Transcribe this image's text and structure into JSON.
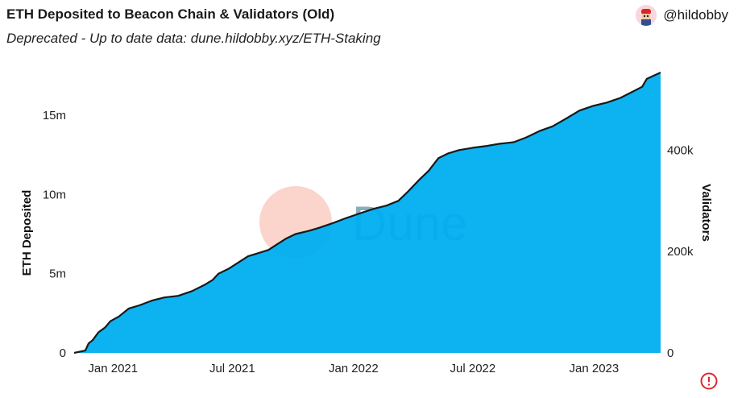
{
  "header": {
    "title": "ETH Deposited to Beacon Chain & Validators (Old)",
    "subtitle": "Deprecated - Up to date data: dune.hildobby.xyz/ETH-Staking",
    "author": "@hildobby"
  },
  "watermark": {
    "text": "Dune"
  },
  "colors": {
    "area": "#00aeef",
    "line": "#1a1a1a",
    "watermark_circle": "#f9b7a8",
    "alert": "#e0262f"
  },
  "chart_data": {
    "type": "area",
    "title": "ETH Deposited to Beacon Chain & Validators (Old)",
    "ylabel": "ETH Deposited",
    "y2label": "Validators",
    "ylim": [
      0,
      17.7
    ],
    "y2lim": [
      0,
      553000
    ],
    "y_ticks": [
      {
        "value": 0,
        "label": "0"
      },
      {
        "value": 5,
        "label": "5m"
      },
      {
        "value": 10,
        "label": "10m"
      },
      {
        "value": 15,
        "label": "15m"
      }
    ],
    "y2_ticks": [
      {
        "value": 0,
        "label": "0"
      },
      {
        "value": 200000,
        "label": "200k"
      },
      {
        "value": 400000,
        "label": "400k"
      }
    ],
    "x_ticks": [
      {
        "date": "2021-01-01",
        "label": "Jan 2021"
      },
      {
        "date": "2021-07-01",
        "label": "Jul 2021"
      },
      {
        "date": "2022-01-01",
        "label": "Jan 2022"
      },
      {
        "date": "2022-07-01",
        "label": "Jul 2022"
      },
      {
        "date": "2023-01-01",
        "label": "Jan 2023"
      }
    ],
    "x_range": [
      "2020-11-03",
      "2023-04-12"
    ],
    "series": [
      {
        "name": "ETH Deposited",
        "unit": "m",
        "points": [
          [
            "2020-11-03",
            0.0
          ],
          [
            "2020-11-20",
            0.15
          ],
          [
            "2020-11-25",
            0.6
          ],
          [
            "2020-12-01",
            0.8
          ],
          [
            "2020-12-10",
            1.3
          ],
          [
            "2020-12-20",
            1.6
          ],
          [
            "2020-12-28",
            2.0
          ],
          [
            "2021-01-10",
            2.3
          ],
          [
            "2021-01-25",
            2.8
          ],
          [
            "2021-02-10",
            3.0
          ],
          [
            "2021-03-01",
            3.3
          ],
          [
            "2021-03-20",
            3.5
          ],
          [
            "2021-04-10",
            3.6
          ],
          [
            "2021-05-01",
            3.9
          ],
          [
            "2021-05-20",
            4.3
          ],
          [
            "2021-06-01",
            4.6
          ],
          [
            "2021-06-10",
            5.0
          ],
          [
            "2021-06-25",
            5.3
          ],
          [
            "2021-07-10",
            5.7
          ],
          [
            "2021-07-25",
            6.1
          ],
          [
            "2021-08-10",
            6.3
          ],
          [
            "2021-08-25",
            6.5
          ],
          [
            "2021-09-05",
            6.8
          ],
          [
            "2021-09-20",
            7.2
          ],
          [
            "2021-10-05",
            7.5
          ],
          [
            "2021-10-25",
            7.7
          ],
          [
            "2021-11-10",
            7.9
          ],
          [
            "2021-12-01",
            8.2
          ],
          [
            "2021-12-20",
            8.5
          ],
          [
            "2022-01-10",
            8.8
          ],
          [
            "2022-02-01",
            9.1
          ],
          [
            "2022-02-20",
            9.3
          ],
          [
            "2022-03-10",
            9.6
          ],
          [
            "2022-03-25",
            10.2
          ],
          [
            "2022-04-10",
            10.9
          ],
          [
            "2022-04-25",
            11.5
          ],
          [
            "2022-05-10",
            12.3
          ],
          [
            "2022-05-25",
            12.6
          ],
          [
            "2022-06-10",
            12.8
          ],
          [
            "2022-07-01",
            12.95
          ],
          [
            "2022-07-20",
            13.05
          ],
          [
            "2022-08-10",
            13.2
          ],
          [
            "2022-09-01",
            13.3
          ],
          [
            "2022-09-20",
            13.6
          ],
          [
            "2022-10-10",
            14.0
          ],
          [
            "2022-10-30",
            14.3
          ],
          [
            "2022-11-20",
            14.8
          ],
          [
            "2022-12-10",
            15.3
          ],
          [
            "2022-12-31",
            15.6
          ],
          [
            "2023-01-20",
            15.8
          ],
          [
            "2023-02-10",
            16.1
          ],
          [
            "2023-03-01",
            16.5
          ],
          [
            "2023-03-15",
            16.8
          ],
          [
            "2023-03-22",
            17.3
          ],
          [
            "2023-04-12",
            17.7
          ]
        ]
      }
    ],
    "grid": false,
    "legend": "none"
  }
}
